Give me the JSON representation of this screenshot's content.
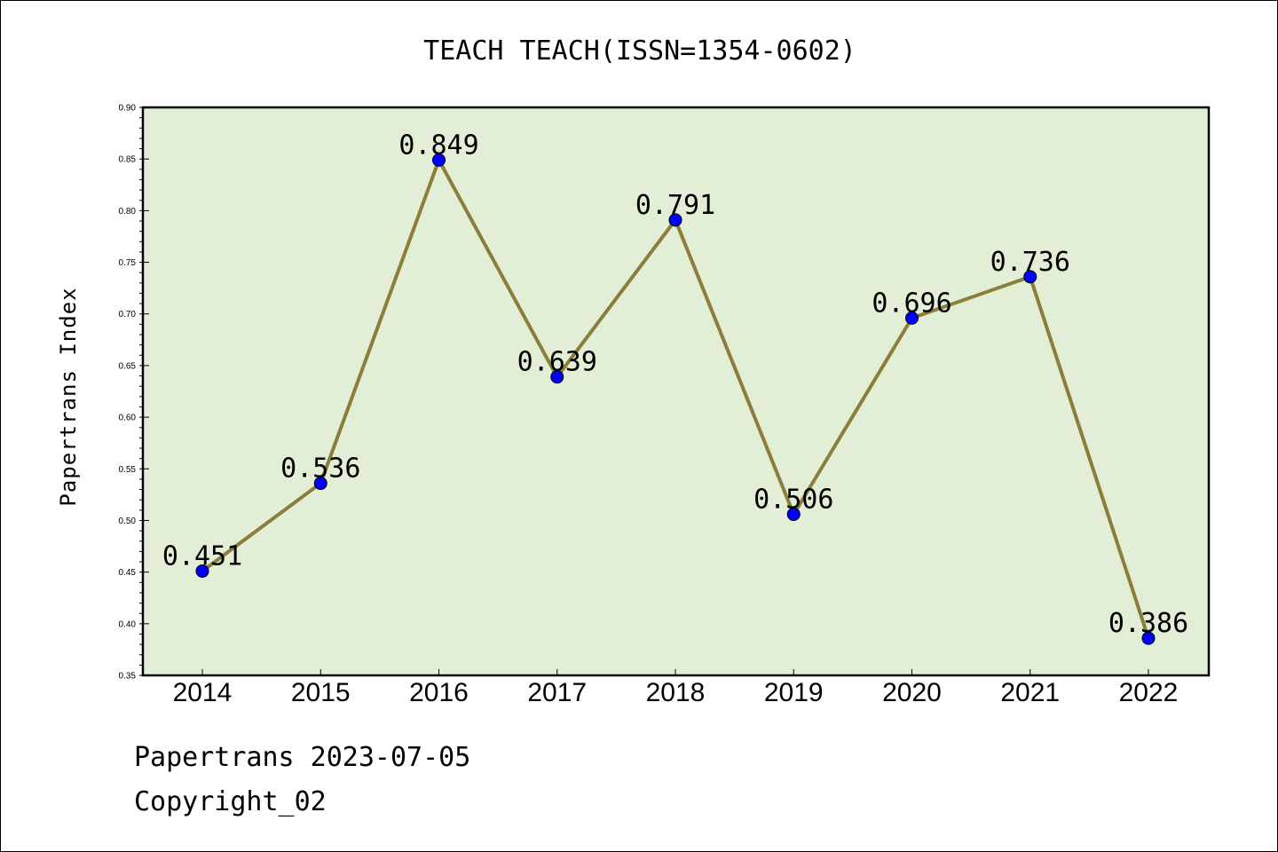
{
  "chart_data": {
    "type": "line",
    "title": "TEACH TEACH(ISSN=1354-0602)",
    "xlabel": "",
    "ylabel": "Papertrans Index",
    "categories": [
      "2014",
      "2015",
      "2016",
      "2017",
      "2018",
      "2019",
      "2020",
      "2021",
      "2022"
    ],
    "values": [
      0.451,
      0.536,
      0.849,
      0.639,
      0.791,
      0.506,
      0.696,
      0.736,
      0.386
    ],
    "data_labels": [
      "0.451",
      "0.536",
      "0.849",
      "0.639",
      "0.791",
      "0.506",
      "0.696",
      "0.736",
      "0.386"
    ],
    "ylim": [
      0.35,
      0.9
    ],
    "yticks": [
      "0.35",
      "0.40",
      "0.45",
      "0.50",
      "0.55",
      "0.60",
      "0.65",
      "0.70",
      "0.75",
      "0.80",
      "0.85",
      "0.90"
    ],
    "grid": false,
    "colors": {
      "plot_background": "#e2efd6",
      "line": "#8b7d3a",
      "marker": "#0000ff"
    }
  },
  "footer": {
    "line1": "Papertrans 2023-07-05",
    "line2": "Copyright_02"
  }
}
